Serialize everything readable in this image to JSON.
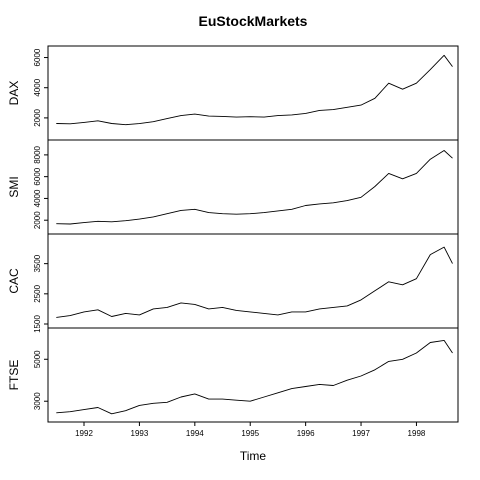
{
  "chart_data": {
    "type": "line",
    "title": "EuStockMarkets",
    "xlabel": "Time",
    "xlim": [
      1991.35,
      1998.75
    ],
    "x_ticks": [
      1992,
      1993,
      1994,
      1995,
      1996,
      1997,
      1998
    ],
    "x_tick_labels": [
      "1992",
      "1993",
      "1994",
      "1995",
      "1996",
      "1997",
      "1998"
    ],
    "x": [
      1991.5,
      1991.75,
      1992.0,
      1992.25,
      1992.5,
      1992.75,
      1993.0,
      1993.25,
      1993.5,
      1993.75,
      1994.0,
      1994.25,
      1994.5,
      1994.75,
      1995.0,
      1995.25,
      1995.5,
      1995.75,
      1996.0,
      1996.25,
      1996.5,
      1996.75,
      1997.0,
      1997.25,
      1997.5,
      1997.75,
      1998.0,
      1998.25,
      1998.5,
      1998.65
    ],
    "series": [
      {
        "name": "DAX",
        "ylabel": "DAX",
        "ylim": [
          800,
          6500
        ],
        "y_ticks": [
          2000,
          4000,
          6000
        ],
        "y_tick_labels": [
          "2000",
          "4000",
          "6000"
        ],
        "values": [
          1630,
          1610,
          1700,
          1810,
          1630,
          1550,
          1620,
          1750,
          1950,
          2150,
          2250,
          2120,
          2100,
          2050,
          2080,
          2050,
          2150,
          2200,
          2300,
          2500,
          2550,
          2700,
          2850,
          3300,
          4300,
          3900,
          4300,
          5200,
          6150,
          5400
        ]
      },
      {
        "name": "SMI",
        "ylabel": "SMI",
        "ylim": [
          1100,
          9000
        ],
        "y_ticks": [
          2000,
          4000,
          6000,
          8000
        ],
        "y_tick_labels": [
          "2000",
          "4000",
          "6000",
          "8000"
        ],
        "values": [
          1680,
          1650,
          1780,
          1900,
          1850,
          1950,
          2100,
          2300,
          2600,
          2900,
          3000,
          2700,
          2600,
          2550,
          2600,
          2700,
          2850,
          3000,
          3350,
          3500,
          3600,
          3800,
          4100,
          5100,
          6300,
          5800,
          6300,
          7600,
          8400,
          7700
        ]
      },
      {
        "name": "CAC",
        "ylabel": "CAC",
        "ylim": [
          1500,
          4350
        ],
        "y_ticks": [
          1500,
          2500,
          3500
        ],
        "y_tick_labels": [
          "1500",
          "2500",
          "3500"
        ],
        "values": [
          1720,
          1780,
          1900,
          1970,
          1750,
          1850,
          1800,
          2000,
          2050,
          2200,
          2150,
          2000,
          2050,
          1950,
          1900,
          1850,
          1800,
          1900,
          1900,
          2000,
          2050,
          2100,
          2300,
          2600,
          2900,
          2800,
          3000,
          3800,
          4050,
          3500
        ]
      },
      {
        "name": "FTSE",
        "ylabel": "FTSE",
        "ylim": [
          2200,
          6300
        ],
        "y_ticks": [
          3000,
          5000
        ],
        "y_tick_labels": [
          "3000",
          "5000"
        ],
        "values": [
          2450,
          2500,
          2600,
          2700,
          2400,
          2550,
          2800,
          2900,
          2950,
          3200,
          3350,
          3100,
          3100,
          3050,
          3000,
          3200,
          3400,
          3600,
          3700,
          3800,
          3750,
          4000,
          4200,
          4500,
          4900,
          5000,
          5300,
          5800,
          5900,
          5300
        ]
      }
    ]
  }
}
